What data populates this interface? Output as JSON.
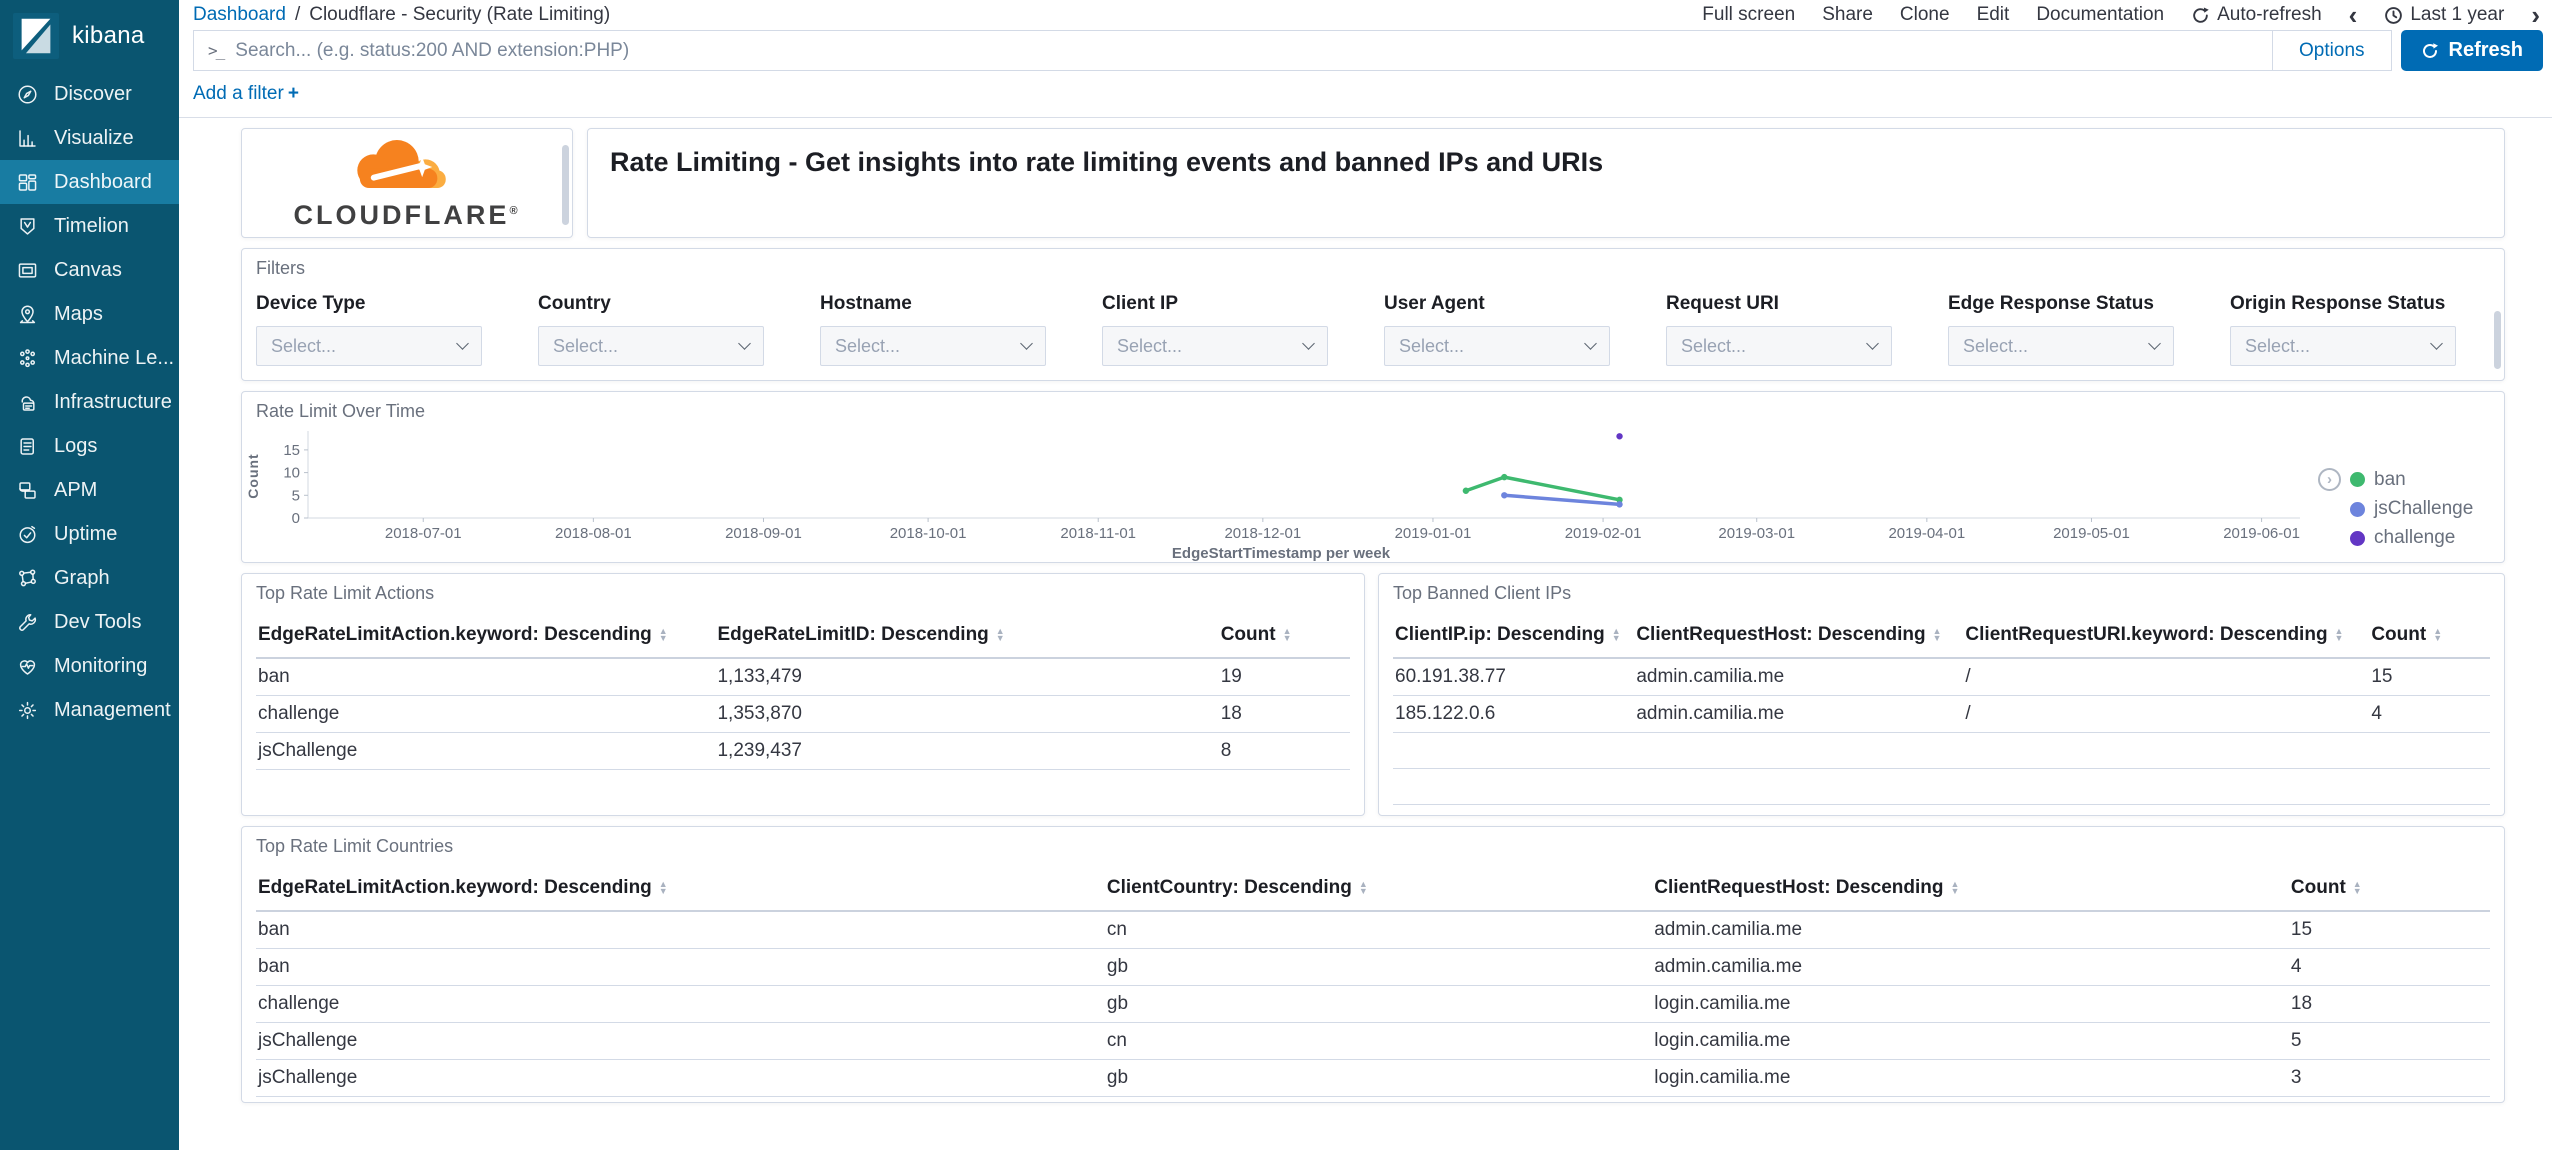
{
  "colors": {
    "accent_blue": "#006BB4",
    "sidebar_bg": "#0A5570",
    "sidebar_active_bg": "#187CA2",
    "cloudflare_orange": "#F6821F",
    "cloudflare_light_orange": "#FBAD41"
  },
  "icons": {
    "chevron_left": "‹",
    "chevron_right": "›",
    "plus": "+",
    "console": ">_",
    "legend_toggle": "›",
    "sort_up": "▲",
    "sort_down": "▼",
    "reg_mark": "®"
  },
  "sidebar": {
    "logo_text": "kibana",
    "items": [
      {
        "label": "Discover",
        "icon": "compass",
        "active": false
      },
      {
        "label": "Visualize",
        "icon": "bar-chart",
        "active": false
      },
      {
        "label": "Dashboard",
        "icon": "dashboard-grid",
        "active": true
      },
      {
        "label": "Timelion",
        "icon": "shield",
        "active": false
      },
      {
        "label": "Canvas",
        "icon": "frame",
        "active": false
      },
      {
        "label": "Maps",
        "icon": "map-pin",
        "active": false
      },
      {
        "label": "Machine Le...",
        "icon": "dots",
        "active": false
      },
      {
        "label": "Infrastructure",
        "icon": "cloud-server",
        "active": false
      },
      {
        "label": "Logs",
        "icon": "scroll",
        "active": false
      },
      {
        "label": "APM",
        "icon": "layers",
        "active": false
      },
      {
        "label": "Uptime",
        "icon": "clock-check",
        "active": false
      },
      {
        "label": "Graph",
        "icon": "node-graph",
        "active": false
      },
      {
        "label": "Dev Tools",
        "icon": "wrench",
        "active": false
      },
      {
        "label": "Monitoring",
        "icon": "heartbeat",
        "active": false
      },
      {
        "label": "Management",
        "icon": "gear",
        "active": false
      }
    ]
  },
  "navbar": {
    "breadcrumb": {
      "link": "Dashboard",
      "separator": "/",
      "current": "Cloudflare - Security (Rate Limiting)"
    },
    "actions": [
      "Full screen",
      "Share",
      "Clone",
      "Edit",
      "Documentation"
    ],
    "auto_refresh": "Auto-refresh",
    "time_range": "Last 1 year"
  },
  "search": {
    "placeholder": "Search... (e.g. status:200 AND extension:PHP)",
    "options_label": "Options",
    "refresh_label": "Refresh"
  },
  "filter_bar": {
    "add_filter_label": "Add a filter"
  },
  "panels": {
    "logo": {
      "brand": "CLOUDFLARE"
    },
    "header": {
      "title": "Rate Limiting - Get insights into rate limiting events and banned IPs and URIs"
    },
    "filters": {
      "title": "Filters",
      "fields": [
        {
          "label": "Device Type",
          "placeholder": "Select..."
        },
        {
          "label": "Country",
          "placeholder": "Select..."
        },
        {
          "label": "Hostname",
          "placeholder": "Select..."
        },
        {
          "label": "Client IP",
          "placeholder": "Select..."
        },
        {
          "label": "User Agent",
          "placeholder": "Select..."
        },
        {
          "label": "Request URI",
          "placeholder": "Select..."
        },
        {
          "label": "Edge Response Status",
          "placeholder": "Select..."
        },
        {
          "label": "Origin Response Status",
          "placeholder": "Select..."
        }
      ]
    },
    "actions_table": {
      "title": "Top Rate Limit Actions",
      "columns": [
        "EdgeRateLimitAction.keyword: Descending",
        "EdgeRateLimitID: Descending",
        "Count"
      ],
      "rows": [
        [
          "ban",
          "1,133,479",
          "19"
        ],
        [
          "challenge",
          "1,353,870",
          "18"
        ],
        [
          "jsChallenge",
          "1,239,437",
          "8"
        ]
      ]
    },
    "banned_ips_table": {
      "title": "Top Banned Client IPs",
      "columns": [
        "ClientIP.ip: Descending",
        "ClientRequestHost: Descending",
        "ClientRequestURI.keyword: Descending",
        "Count"
      ],
      "rows": [
        [
          "60.191.38.77",
          "admin.camilia.me",
          "/",
          "15"
        ],
        [
          "185.122.0.6",
          "admin.camilia.me",
          "/",
          "4"
        ]
      ]
    },
    "countries_table": {
      "title": "Top Rate Limit Countries",
      "columns": [
        "EdgeRateLimitAction.keyword: Descending",
        "ClientCountry: Descending",
        "ClientRequestHost: Descending",
        "Count"
      ],
      "rows": [
        [
          "ban",
          "cn",
          "admin.camilia.me",
          "15"
        ],
        [
          "ban",
          "gb",
          "admin.camilia.me",
          "4"
        ],
        [
          "challenge",
          "gb",
          "login.camilia.me",
          "18"
        ],
        [
          "jsChallenge",
          "cn",
          "login.camilia.me",
          "5"
        ],
        [
          "jsChallenge",
          "gb",
          "login.camilia.me",
          "3"
        ]
      ]
    }
  },
  "chart_data": {
    "type": "line",
    "title": "Rate Limit Over Time",
    "xlabel": "EdgeStartTimestamp per week",
    "ylabel": "Count",
    "ylim": [
      0,
      18.5
    ],
    "yticks": [
      0,
      5,
      10,
      15
    ],
    "xticks": [
      "2018-07-01",
      "2018-08-01",
      "2018-09-01",
      "2018-10-01",
      "2018-11-01",
      "2018-12-01",
      "2019-01-01",
      "2019-02-01",
      "2019-03-01",
      "2019-04-01",
      "2019-05-01",
      "2019-06-01"
    ],
    "x_range": [
      "2018-06-10",
      "2019-06-08"
    ],
    "grid": false,
    "legend_position": "right",
    "series": [
      {
        "name": "ban",
        "color": "#3EB96F",
        "points": [
          [
            "2019-01-07",
            6
          ],
          [
            "2019-01-14",
            9
          ],
          [
            "2019-02-04",
            4
          ]
        ]
      },
      {
        "name": "jsChallenge",
        "color": "#6D84DD",
        "points": [
          [
            "2019-01-14",
            5
          ],
          [
            "2019-02-04",
            3
          ]
        ]
      },
      {
        "name": "challenge",
        "color": "#6236C4",
        "points": [
          [
            "2019-02-04",
            18
          ]
        ]
      }
    ]
  }
}
